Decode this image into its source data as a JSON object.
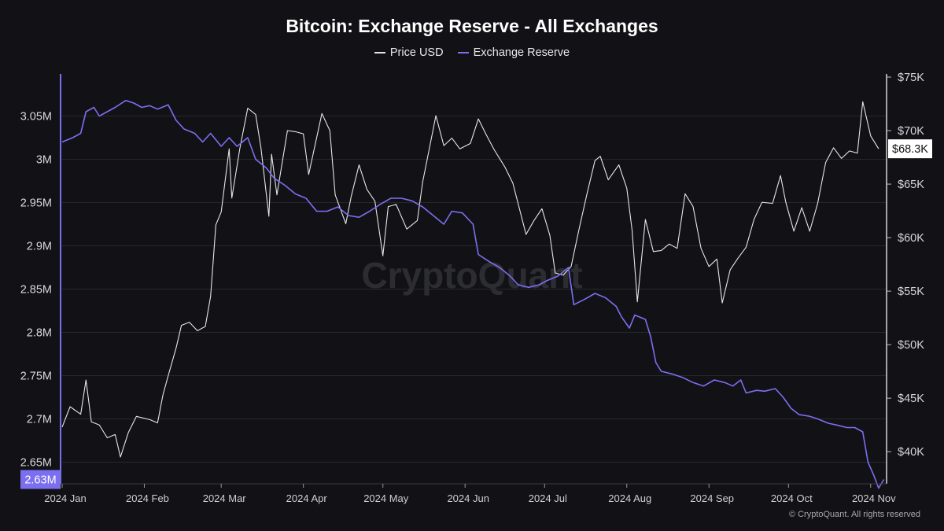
{
  "title": "Bitcoin: Exchange Reserve - All Exchanges",
  "watermark": "CryptoQuant",
  "copyright": "© CryptoQuant. All rights reserved",
  "colors": {
    "price": "#e6e6e6",
    "reserve": "#7b6ff0",
    "grid": "#26262c",
    "background": "#121216"
  },
  "chart_data": {
    "type": "line",
    "title": "Bitcoin: Exchange Reserve - All Exchanges",
    "x_range": [
      "2024-01-01",
      "2024-11-07"
    ],
    "x_ticks": [
      "2024 Jan",
      "2024 Feb",
      "2024 Mar",
      "2024 Apr",
      "2024 May",
      "2024 Jun",
      "2024 Jul",
      "2024 Aug",
      "2024 Sep",
      "2024 Oct",
      "2024 Nov"
    ],
    "y_left_ticks": [
      "2.65M",
      "2.7M",
      "2.75M",
      "2.8M",
      "2.85M",
      "2.9M",
      "2.95M",
      "3M",
      "3.05M"
    ],
    "y_right_ticks": [
      "$40K",
      "$45K",
      "$50K",
      "$55K",
      "$60K",
      "$65K",
      "$70K",
      "$75K"
    ],
    "y_left_range": [
      2.625,
      3.095
    ],
    "y_right_range": [
      37000,
      75000
    ],
    "legend_position": "top-center",
    "series": [
      {
        "name": "Price USD",
        "axis": "right",
        "color": "#e6e6e6",
        "points": [
          [
            "2024-01-01",
            42300
          ],
          [
            "2024-01-04",
            44200
          ],
          [
            "2024-01-08",
            43500
          ],
          [
            "2024-01-10",
            46700
          ],
          [
            "2024-01-12",
            42800
          ],
          [
            "2024-01-15",
            42500
          ],
          [
            "2024-01-18",
            41300
          ],
          [
            "2024-01-21",
            41600
          ],
          [
            "2024-01-23",
            39500
          ],
          [
            "2024-01-26",
            41800
          ],
          [
            "2024-01-29",
            43300
          ],
          [
            "2024-02-03",
            43000
          ],
          [
            "2024-02-06",
            42700
          ],
          [
            "2024-02-08",
            45300
          ],
          [
            "2024-02-10",
            47100
          ],
          [
            "2024-02-13",
            49700
          ],
          [
            "2024-02-15",
            51800
          ],
          [
            "2024-02-18",
            52100
          ],
          [
            "2024-02-21",
            51300
          ],
          [
            "2024-02-24",
            51700
          ],
          [
            "2024-02-26",
            54500
          ],
          [
            "2024-02-28",
            61200
          ],
          [
            "2024-03-01",
            62400
          ],
          [
            "2024-03-04",
            68300
          ],
          [
            "2024-03-05",
            63700
          ],
          [
            "2024-03-08",
            68300
          ],
          [
            "2024-03-11",
            72100
          ],
          [
            "2024-03-14",
            71500
          ],
          [
            "2024-03-16",
            68400
          ],
          [
            "2024-03-19",
            62000
          ],
          [
            "2024-03-20",
            67800
          ],
          [
            "2024-03-22",
            64000
          ],
          [
            "2024-03-26",
            70000
          ],
          [
            "2024-03-29",
            69900
          ],
          [
            "2024-04-01",
            69700
          ],
          [
            "2024-04-03",
            65900
          ],
          [
            "2024-04-08",
            71600
          ],
          [
            "2024-04-11",
            70000
          ],
          [
            "2024-04-13",
            64000
          ],
          [
            "2024-04-17",
            61300
          ],
          [
            "2024-04-19",
            63800
          ],
          [
            "2024-04-22",
            66800
          ],
          [
            "2024-04-25",
            64500
          ],
          [
            "2024-04-28",
            63400
          ],
          [
            "2024-05-01",
            58300
          ],
          [
            "2024-05-03",
            62900
          ],
          [
            "2024-05-06",
            63100
          ],
          [
            "2024-05-10",
            60800
          ],
          [
            "2024-05-14",
            61600
          ],
          [
            "2024-05-16",
            65200
          ],
          [
            "2024-05-21",
            71400
          ],
          [
            "2024-05-24",
            68600
          ],
          [
            "2024-05-27",
            69300
          ],
          [
            "2024-05-30",
            68300
          ],
          [
            "2024-06-03",
            68800
          ],
          [
            "2024-06-06",
            71100
          ],
          [
            "2024-06-09",
            69600
          ],
          [
            "2024-06-12",
            68200
          ],
          [
            "2024-06-16",
            66600
          ],
          [
            "2024-06-19",
            65100
          ],
          [
            "2024-06-24",
            60300
          ],
          [
            "2024-06-27",
            61600
          ],
          [
            "2024-06-30",
            62700
          ],
          [
            "2024-07-03",
            60200
          ],
          [
            "2024-07-05",
            56700
          ],
          [
            "2024-07-08",
            56500
          ],
          [
            "2024-07-11",
            57300
          ],
          [
            "2024-07-14",
            60800
          ],
          [
            "2024-07-17",
            64100
          ],
          [
            "2024-07-20",
            67200
          ],
          [
            "2024-07-22",
            67600
          ],
          [
            "2024-07-25",
            65400
          ],
          [
            "2024-07-29",
            66800
          ],
          [
            "2024-08-01",
            64600
          ],
          [
            "2024-08-03",
            60700
          ],
          [
            "2024-08-05",
            54000
          ],
          [
            "2024-08-08",
            61700
          ],
          [
            "2024-08-11",
            58700
          ],
          [
            "2024-08-14",
            58800
          ],
          [
            "2024-08-17",
            59400
          ],
          [
            "2024-08-20",
            59000
          ],
          [
            "2024-08-23",
            64100
          ],
          [
            "2024-08-26",
            62900
          ],
          [
            "2024-08-29",
            59000
          ],
          [
            "2024-09-01",
            57300
          ],
          [
            "2024-09-04",
            58000
          ],
          [
            "2024-09-06",
            53900
          ],
          [
            "2024-09-09",
            57000
          ],
          [
            "2024-09-12",
            58100
          ],
          [
            "2024-09-15",
            59100
          ],
          [
            "2024-09-18",
            61700
          ],
          [
            "2024-09-21",
            63300
          ],
          [
            "2024-09-25",
            63200
          ],
          [
            "2024-09-28",
            65800
          ],
          [
            "2024-09-30",
            63300
          ],
          [
            "2024-10-03",
            60600
          ],
          [
            "2024-10-06",
            62800
          ],
          [
            "2024-10-09",
            60600
          ],
          [
            "2024-10-12",
            63200
          ],
          [
            "2024-10-15",
            67000
          ],
          [
            "2024-10-18",
            68400
          ],
          [
            "2024-10-21",
            67400
          ],
          [
            "2024-10-24",
            68100
          ],
          [
            "2024-10-27",
            67900
          ],
          [
            "2024-10-29",
            72700
          ],
          [
            "2024-11-01",
            69500
          ],
          [
            "2024-11-04",
            68300
          ]
        ]
      },
      {
        "name": "Exchange Reserve",
        "axis": "left",
        "color": "#7b6ff0",
        "points": [
          [
            "2024-01-01",
            3.02
          ],
          [
            "2024-01-05",
            3.025
          ],
          [
            "2024-01-08",
            3.03
          ],
          [
            "2024-01-10",
            3.055
          ],
          [
            "2024-01-13",
            3.06
          ],
          [
            "2024-01-15",
            3.05
          ],
          [
            "2024-01-18",
            3.055
          ],
          [
            "2024-01-21",
            3.06
          ],
          [
            "2024-01-25",
            3.068
          ],
          [
            "2024-01-28",
            3.065
          ],
          [
            "2024-01-31",
            3.06
          ],
          [
            "2024-02-03",
            3.062
          ],
          [
            "2024-02-06",
            3.058
          ],
          [
            "2024-02-10",
            3.063
          ],
          [
            "2024-02-13",
            3.045
          ],
          [
            "2024-02-16",
            3.035
          ],
          [
            "2024-02-20",
            3.03
          ],
          [
            "2024-02-23",
            3.02
          ],
          [
            "2024-02-26",
            3.03
          ],
          [
            "2024-03-01",
            3.015
          ],
          [
            "2024-03-04",
            3.025
          ],
          [
            "2024-03-07",
            3.015
          ],
          [
            "2024-03-11",
            3.025
          ],
          [
            "2024-03-14",
            3.0
          ],
          [
            "2024-03-18",
            2.99
          ],
          [
            "2024-03-21",
            2.978
          ],
          [
            "2024-03-25",
            2.97
          ],
          [
            "2024-03-29",
            2.96
          ],
          [
            "2024-04-02",
            2.955
          ],
          [
            "2024-04-06",
            2.94
          ],
          [
            "2024-04-10",
            2.94
          ],
          [
            "2024-04-14",
            2.945
          ],
          [
            "2024-04-18",
            2.935
          ],
          [
            "2024-04-22",
            2.933
          ],
          [
            "2024-04-26",
            2.94
          ],
          [
            "2024-04-30",
            2.948
          ],
          [
            "2024-05-04",
            2.955
          ],
          [
            "2024-05-08",
            2.955
          ],
          [
            "2024-05-12",
            2.952
          ],
          [
            "2024-05-16",
            2.945
          ],
          [
            "2024-05-20",
            2.935
          ],
          [
            "2024-05-24",
            2.925
          ],
          [
            "2024-05-27",
            2.94
          ],
          [
            "2024-05-31",
            2.938
          ],
          [
            "2024-06-04",
            2.925
          ],
          [
            "2024-06-06",
            2.89
          ],
          [
            "2024-06-10",
            2.882
          ],
          [
            "2024-06-14",
            2.875
          ],
          [
            "2024-06-18",
            2.865
          ],
          [
            "2024-06-21",
            2.855
          ],
          [
            "2024-06-25",
            2.852
          ],
          [
            "2024-06-29",
            2.855
          ],
          [
            "2024-07-02",
            2.86
          ],
          [
            "2024-07-06",
            2.865
          ],
          [
            "2024-07-10",
            2.875
          ],
          [
            "2024-07-12",
            2.832
          ],
          [
            "2024-07-16",
            2.838
          ],
          [
            "2024-07-20",
            2.845
          ],
          [
            "2024-07-24",
            2.84
          ],
          [
            "2024-07-28",
            2.83
          ],
          [
            "2024-07-30",
            2.818
          ],
          [
            "2024-08-02",
            2.805
          ],
          [
            "2024-08-04",
            2.82
          ],
          [
            "2024-08-08",
            2.815
          ],
          [
            "2024-08-10",
            2.795
          ],
          [
            "2024-08-12",
            2.765
          ],
          [
            "2024-08-14",
            2.755
          ],
          [
            "2024-08-18",
            2.752
          ],
          [
            "2024-08-22",
            2.748
          ],
          [
            "2024-08-26",
            2.742
          ],
          [
            "2024-08-30",
            2.738
          ],
          [
            "2024-09-03",
            2.745
          ],
          [
            "2024-09-07",
            2.742
          ],
          [
            "2024-09-10",
            2.738
          ],
          [
            "2024-09-13",
            2.745
          ],
          [
            "2024-09-15",
            2.73
          ],
          [
            "2024-09-19",
            2.733
          ],
          [
            "2024-09-22",
            2.732
          ],
          [
            "2024-09-26",
            2.735
          ],
          [
            "2024-09-29",
            2.725
          ],
          [
            "2024-10-02",
            2.712
          ],
          [
            "2024-10-05",
            2.705
          ],
          [
            "2024-10-09",
            2.703
          ],
          [
            "2024-10-12",
            2.7
          ],
          [
            "2024-10-16",
            2.695
          ],
          [
            "2024-10-19",
            2.693
          ],
          [
            "2024-10-23",
            2.69
          ],
          [
            "2024-10-26",
            2.69
          ],
          [
            "2024-10-29",
            2.685
          ],
          [
            "2024-10-31",
            2.65
          ],
          [
            "2024-11-02",
            2.636
          ],
          [
            "2024-11-04",
            2.62
          ],
          [
            "2024-11-06",
            2.63
          ]
        ]
      }
    ],
    "last_value_labels": {
      "left": "2.63M",
      "right": "$68.3K"
    }
  }
}
